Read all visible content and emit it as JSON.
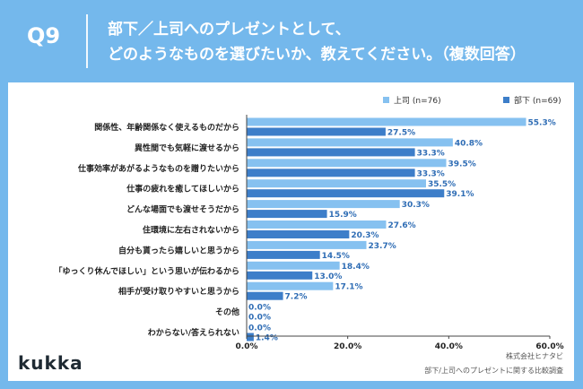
{
  "header": {
    "question": "Q9",
    "title_line1": "部下／上司へのプレゼントとして、",
    "title_line2": "どのようなものを選びたいか、教えてください。（複数回答）"
  },
  "brand": "kukka",
  "source_line1": "株式会社ヒナタビ",
  "source_line2": "部下/上司へのプレゼントに関する比較調査",
  "colors": {
    "background": "#74B8EC",
    "series_boss": "#86C1F0",
    "series_sub": "#3D7EC9"
  },
  "chart_data": {
    "type": "bar",
    "orientation": "horizontal",
    "categories": [
      "関係性、年齢関係なく使えるものだから",
      "異性間でも気軽に渡せるから",
      "仕事効率があがるようなものを贈りたいから",
      "仕事の疲れを癒してほしいから",
      "どんな場面でも渡せそうだから",
      "住環境に左右されないから",
      "自分も貰ったら嬉しいと思うから",
      "「ゆっくり休んでほしい」という思いが伝わるから",
      "相手が受け取りやすいと思うから",
      "その他",
      "わからない/答えられない"
    ],
    "series": [
      {
        "name": "上司 (n=76)",
        "values": [
          55.3,
          40.8,
          39.5,
          35.5,
          30.3,
          27.6,
          23.7,
          18.4,
          17.1,
          0.0,
          0.0
        ]
      },
      {
        "name": "部下 (n=69)",
        "values": [
          27.5,
          33.3,
          33.3,
          39.1,
          15.9,
          20.3,
          14.5,
          13.0,
          7.2,
          0.0,
          1.4
        ]
      }
    ],
    "value_labels": [
      [
        "55.3%",
        "40.8%",
        "39.5%",
        "35.5%",
        "30.3%",
        "27.6%",
        "23.7%",
        "18.4%",
        "17.1%",
        "0.0%",
        "0.0%"
      ],
      [
        "27.5%",
        "33.3%",
        "33.3%",
        "39.1%",
        "15.9%",
        "20.3%",
        "14.5%",
        "13.0%",
        "7.2%",
        "0.0%",
        "1.4%"
      ]
    ],
    "xlim": [
      0,
      60
    ],
    "x_ticks": [
      0,
      20,
      40,
      60
    ],
    "x_tick_labels": [
      "0.0%",
      "20.0%",
      "40.0%",
      "60.0%"
    ],
    "legend_position": "top-right",
    "grid": false
  }
}
